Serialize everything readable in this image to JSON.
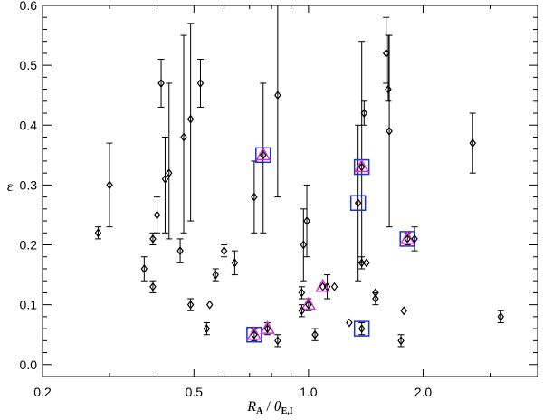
{
  "chart_data": {
    "type": "scatter",
    "title": "",
    "xlabel": {
      "main": "R",
      "main_sub": "A",
      "sep": " / ",
      "theta": "θ",
      "theta_sub": "E,I"
    },
    "ylabel": "ε",
    "x_scale": "log",
    "xlim": [
      0.2,
      4.0
    ],
    "ylim": [
      -0.02,
      0.6
    ],
    "x_major_ticks": [
      {
        "value": 0.2,
        "label": "0.2"
      },
      {
        "value": 0.5,
        "label": "0.5"
      },
      {
        "value": 1.0,
        "label": "1.0"
      },
      {
        "value": 2.0,
        "label": "2.0"
      }
    ],
    "x_minor_ticks": [
      0.3,
      0.4,
      0.6,
      0.7,
      0.8,
      0.9,
      3.0,
      4.0
    ],
    "y_major_ticks": [
      {
        "value": 0.0,
        "label": "0.0"
      },
      {
        "value": 0.1,
        "label": "0.1"
      },
      {
        "value": 0.2,
        "label": "0.2"
      },
      {
        "value": 0.3,
        "label": "0.3"
      },
      {
        "value": 0.4,
        "label": "0.4"
      },
      {
        "value": 0.5,
        "label": "0.5"
      },
      {
        "value": 0.6,
        "label": "0.6"
      }
    ],
    "y_minor_step": 0.02,
    "grid": false,
    "legend": null,
    "points": [
      {
        "x": 0.28,
        "y": 0.22,
        "lo": 0.21,
        "hi": 0.23
      },
      {
        "x": 0.3,
        "y": 0.3,
        "lo": 0.23,
        "hi": 0.37
      },
      {
        "x": 0.37,
        "y": 0.16,
        "lo": 0.14,
        "hi": 0.18
      },
      {
        "x": 0.39,
        "y": 0.13,
        "lo": 0.12,
        "hi": 0.14
      },
      {
        "x": 0.39,
        "y": 0.21,
        "lo": 0.2,
        "hi": 0.22
      },
      {
        "x": 0.4,
        "y": 0.25,
        "lo": 0.22,
        "hi": 0.28
      },
      {
        "x": 0.41,
        "y": 0.47,
        "lo": 0.43,
        "hi": 0.51
      },
      {
        "x": 0.42,
        "y": 0.31,
        "lo": 0.22,
        "hi": 0.38
      },
      {
        "x": 0.43,
        "y": 0.32,
        "lo": 0.21,
        "hi": 0.47
      },
      {
        "x": 0.46,
        "y": 0.19,
        "lo": 0.17,
        "hi": 0.21
      },
      {
        "x": 0.47,
        "y": 0.38,
        "lo": 0.22,
        "hi": 0.55
      },
      {
        "x": 0.49,
        "y": 0.41,
        "lo": 0.24,
        "hi": 0.57
      },
      {
        "x": 0.49,
        "y": 0.1,
        "lo": 0.09,
        "hi": 0.11
      },
      {
        "x": 0.52,
        "y": 0.47,
        "lo": 0.43,
        "hi": 0.51
      },
      {
        "x": 0.54,
        "y": 0.06,
        "lo": 0.05,
        "hi": 0.07
      },
      {
        "x": 0.55,
        "y": 0.1,
        "lo": null,
        "hi": null
      },
      {
        "x": 0.57,
        "y": 0.15,
        "lo": 0.14,
        "hi": 0.16
      },
      {
        "x": 0.6,
        "y": 0.19,
        "lo": 0.18,
        "hi": 0.2
      },
      {
        "x": 0.64,
        "y": 0.17,
        "lo": 0.15,
        "hi": 0.19
      },
      {
        "x": 0.72,
        "y": 0.28,
        "lo": 0.22,
        "hi": 0.34
      },
      {
        "x": 0.83,
        "y": 0.45,
        "lo": 0.28,
        "hi": 0.62
      },
      {
        "x": 0.83,
        "y": 0.04,
        "lo": 0.03,
        "hi": 0.05
      },
      {
        "x": 0.96,
        "y": 0.12,
        "lo": 0.11,
        "hi": 0.13
      },
      {
        "x": 0.96,
        "y": 0.09,
        "lo": 0.08,
        "hi": 0.1
      },
      {
        "x": 0.97,
        "y": 0.2,
        "lo": 0.14,
        "hi": 0.26
      },
      {
        "x": 0.99,
        "y": 0.24,
        "lo": 0.18,
        "hi": 0.3
      },
      {
        "x": 1.04,
        "y": 0.05,
        "lo": 0.04,
        "hi": 0.06
      },
      {
        "x": 1.12,
        "y": 0.13,
        "lo": 0.11,
        "hi": 0.15
      },
      {
        "x": 1.17,
        "y": 0.13,
        "lo": null,
        "hi": null
      },
      {
        "x": 1.28,
        "y": 0.07,
        "lo": null,
        "hi": null
      },
      {
        "x": 1.38,
        "y": 0.17,
        "lo": 0.16,
        "hi": 0.18
      },
      {
        "x": 1.4,
        "y": 0.42,
        "lo": 0.4,
        "hi": 0.44
      },
      {
        "x": 1.42,
        "y": 0.17,
        "lo": null,
        "hi": null
      },
      {
        "x": 1.5,
        "y": 0.12,
        "lo": null,
        "hi": null
      },
      {
        "x": 1.5,
        "y": 0.11,
        "lo": 0.1,
        "hi": 0.12
      },
      {
        "x": 1.6,
        "y": 0.52,
        "lo": 0.47,
        "hi": 0.58
      },
      {
        "x": 1.62,
        "y": 0.46,
        "lo": 0.44,
        "hi": 0.55
      },
      {
        "x": 1.63,
        "y": 0.39,
        "lo": 0.23,
        "hi": 0.55
      },
      {
        "x": 1.75,
        "y": 0.04,
        "lo": 0.03,
        "hi": 0.05
      },
      {
        "x": 1.78,
        "y": 0.09,
        "lo": null,
        "hi": null
      },
      {
        "x": 1.9,
        "y": 0.21,
        "lo": 0.19,
        "hi": 0.23
      },
      {
        "x": 2.7,
        "y": 0.37,
        "lo": 0.32,
        "hi": 0.42
      },
      {
        "x": 3.2,
        "y": 0.08,
        "lo": 0.07,
        "hi": 0.09
      },
      {
        "x": 0.72,
        "y": 0.05,
        "lo": 0.04,
        "hi": 0.06,
        "square": true,
        "triangle": true
      },
      {
        "x": 0.76,
        "y": 0.35,
        "lo": 0.22,
        "hi": 0.47,
        "square": true,
        "triangle": true
      },
      {
        "x": 0.78,
        "y": 0.06,
        "lo": 0.05,
        "hi": 0.07,
        "triangle": true
      },
      {
        "x": 1.0,
        "y": 0.1,
        "lo": 0.09,
        "hi": 0.11,
        "triangle": true
      },
      {
        "x": 1.09,
        "y": 0.13,
        "lo": null,
        "hi": null,
        "triangle": true
      },
      {
        "x": 1.35,
        "y": 0.27,
        "lo": 0.14,
        "hi": 0.4,
        "square": true
      },
      {
        "x": 1.38,
        "y": 0.33,
        "lo": 0.17,
        "hi": 0.54,
        "square": true,
        "triangle": true
      },
      {
        "x": 1.38,
        "y": 0.06,
        "lo": 0.05,
        "hi": 0.07,
        "square": true
      },
      {
        "x": 1.82,
        "y": 0.21,
        "lo": 0.2,
        "hi": 0.22,
        "square": true,
        "triangle": true
      }
    ]
  },
  "colors": {
    "marker": "#000000",
    "square_highlight": "#1f2fd6",
    "triangle_highlight": "#d42fd4",
    "axis": "#000000"
  }
}
